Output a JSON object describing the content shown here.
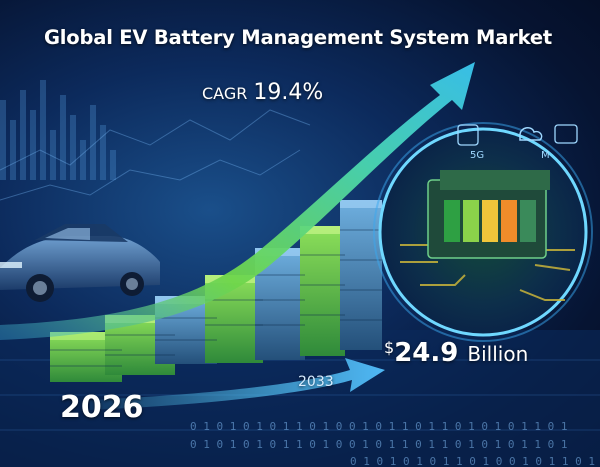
{
  "title": "Global EV Battery Management System Market",
  "cagr": {
    "label": "CAGR",
    "value": "19.4%"
  },
  "start_year": "2026",
  "end_year": "2033",
  "market_value": {
    "currency": "$",
    "amount": "24.9",
    "unit": "Billion"
  },
  "chip_panel_labels": [
    "5G",
    "M"
  ],
  "binary_text": "0 1 0 1 0 1 0 1 1 0 1 0 0 1 0 1 1 0 1 1 0 1 0 1 0 1 1 0 1",
  "colors": {
    "background": "#0c2a5c",
    "growth_arrow": "#7be04a",
    "chip_board": "#1f4a3a",
    "cells": [
      "#2ea043",
      "#8bd24a",
      "#f0c53a",
      "#f08c2a"
    ]
  }
}
